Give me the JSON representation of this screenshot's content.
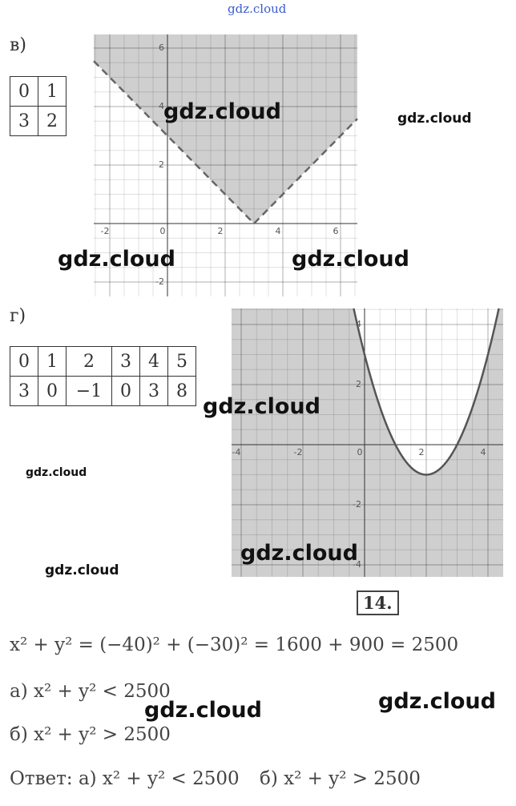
{
  "header": {
    "watermark": "gdz.cloud"
  },
  "part_v": {
    "label": "в)",
    "table": {
      "rows": [
        [
          "0",
          "1"
        ],
        [
          "3",
          "2"
        ]
      ]
    },
    "graph": {
      "xticks": [
        -2,
        0,
        2,
        4,
        6
      ],
      "yticks": [
        6,
        4,
        2,
        -2
      ]
    }
  },
  "part_g": {
    "label": "г)",
    "table": {
      "rows": [
        [
          "0",
          "1",
          "2",
          "3",
          "4",
          "5"
        ],
        [
          "3",
          "0",
          "−1",
          "0",
          "3",
          "8"
        ]
      ]
    },
    "graph": {
      "xticks": [
        -4,
        -2,
        0,
        2,
        4
      ],
      "yticks": [
        4,
        2,
        -2,
        -4
      ]
    }
  },
  "problem": {
    "number": "14.",
    "lines": [
      "x² + y² = (−40)² + (−30)² = 1600 + 900 = 2500",
      "а) x² + y² < 2500",
      "б) x² + y² > 2500"
    ],
    "answer": {
      "label": "Ответ:",
      "a": "а) x² + y² < 2500",
      "b": "б) x² + y² > 2500"
    }
  },
  "watermarks": [
    "gdz.cloud",
    "gdz.cloud",
    "gdz.cloud",
    "gdz.cloud",
    "gdz.cloud",
    "gdz.cloud",
    "gdz.cloud",
    "gdz.cloud",
    "gdz.cloud",
    "gdz.cloud"
  ]
}
